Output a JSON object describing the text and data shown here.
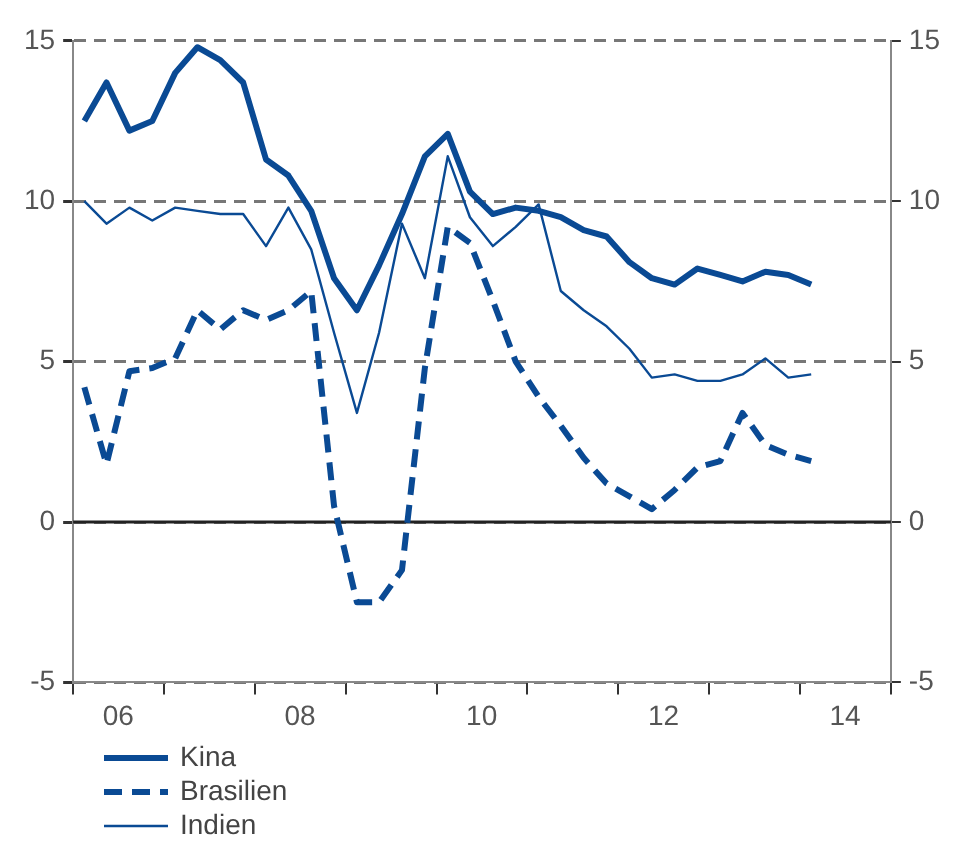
{
  "chart_data": {
    "type": "line",
    "x": [
      "2006-02-15",
      "2006-05-15",
      "2006-08-15",
      "2006-11-15",
      "2007-02-15",
      "2007-05-15",
      "2007-08-15",
      "2007-11-15",
      "2008-02-15",
      "2008-05-15",
      "2008-08-15",
      "2008-11-15",
      "2009-02-15",
      "2009-05-15",
      "2009-08-15",
      "2009-11-15",
      "2010-02-15",
      "2010-05-15",
      "2010-08-15",
      "2010-11-15",
      "2011-02-15",
      "2011-05-15",
      "2011-08-15",
      "2011-11-15",
      "2012-02-15",
      "2012-05-15",
      "2012-08-15",
      "2012-11-15",
      "2013-02-15",
      "2013-05-15",
      "2013-08-15",
      "2013-11-15",
      "2014-02-15"
    ],
    "series": [
      {
        "name": "Kina",
        "color": "#0a4a94",
        "line_style": "solid",
        "values": [
          12.5,
          13.7,
          12.2,
          12.5,
          14.0,
          14.8,
          14.4,
          13.7,
          11.3,
          10.8,
          9.7,
          7.6,
          6.6,
          8.0,
          9.6,
          11.4,
          12.1,
          10.3,
          9.6,
          9.8,
          9.7,
          9.5,
          9.1,
          8.9,
          8.1,
          7.6,
          7.4,
          7.9,
          7.7,
          7.5,
          7.8,
          7.7,
          7.4
        ]
      },
      {
        "name": "Brasilien",
        "color": "#0a4a94",
        "line_style": "dashed",
        "values": [
          4.2,
          1.8,
          4.7,
          4.8,
          5.1,
          6.6,
          6.0,
          6.6,
          6.3,
          6.6,
          7.2,
          0.5,
          -2.5,
          -2.5,
          -1.5,
          4.8,
          9.2,
          8.7,
          6.9,
          5.0,
          3.9,
          3.0,
          2.0,
          1.2,
          0.8,
          0.4,
          1.0,
          1.7,
          1.9,
          3.4,
          2.4,
          2.1,
          1.9
        ]
      },
      {
        "name": "Indien",
        "color": "#0a4a94",
        "line_style": "solid",
        "values": [
          10.0,
          9.3,
          9.8,
          9.4,
          9.8,
          9.7,
          9.6,
          9.6,
          8.6,
          9.8,
          8.5,
          5.9,
          3.4,
          5.9,
          9.3,
          7.6,
          11.4,
          9.5,
          8.6,
          9.2,
          9.9,
          7.2,
          6.6,
          6.1,
          5.4,
          4.5,
          4.6,
          4.4,
          4.4,
          4.6,
          5.1,
          4.5,
          4.6
        ]
      }
    ],
    "xlim": [
      "2006",
      "2015"
    ],
    "xticks": [
      {
        "value": "2006",
        "label": null
      },
      {
        "value": "2006-07-01",
        "label": "06"
      },
      {
        "value": "2007",
        "label": null
      },
      {
        "value": "2008",
        "label": null
      },
      {
        "value": "2008-07-01",
        "label": "08"
      },
      {
        "value": "2009",
        "label": null
      },
      {
        "value": "2010",
        "label": null
      },
      {
        "value": "2010-07-01",
        "label": "10"
      },
      {
        "value": "2011",
        "label": null
      },
      {
        "value": "2012",
        "label": null
      },
      {
        "value": "2012-07-01",
        "label": "12"
      },
      {
        "value": "2013",
        "label": null
      },
      {
        "value": "2014",
        "label": null
      },
      {
        "value": "2014-07-01",
        "label": "14"
      },
      {
        "value": "2015",
        "label": null
      }
    ],
    "ylim": [
      -5,
      15
    ],
    "yticks": [
      -5,
      0,
      5,
      10,
      15
    ],
    "y2lim": [
      -5,
      15
    ],
    "y2ticks": [
      -5,
      0,
      5,
      10,
      15
    ],
    "ref_lines": [
      {
        "axis": "y",
        "value": 0,
        "color": "#222222",
        "line_style": "solid"
      }
    ],
    "grid": "y",
    "legend": "bottom",
    "marker": "none"
  }
}
